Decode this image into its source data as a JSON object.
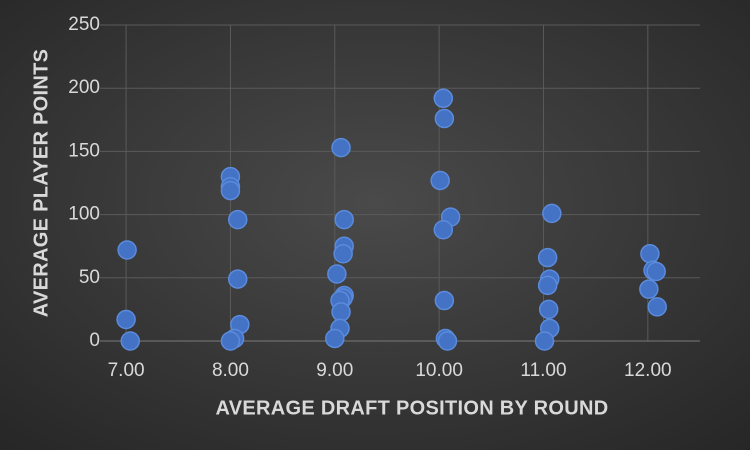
{
  "chart_data": {
    "type": "scatter",
    "x_label": "AVERAGE DRAFT POSITION BY ROUND",
    "y_label": "AVERAGE PLAYER POINTS",
    "color": "#4472c4",
    "grid": true,
    "x": [
      7.01,
      7.0,
      7.04,
      8.0,
      8.0,
      8.0,
      8.07,
      8.07,
      8.09,
      8.04,
      8.0,
      9.06,
      9.09,
      9.09,
      9.08,
      9.02,
      9.09,
      9.08,
      9.05,
      9.06,
      9.05,
      9.0,
      10.04,
      10.05,
      10.01,
      10.11,
      10.04,
      10.05,
      10.06,
      10.08,
      11.08,
      11.04,
      11.06,
      11.04,
      11.05,
      11.06,
      11.01,
      12.02,
      12.05,
      12.08,
      12.01,
      12.09
    ],
    "y": [
      72,
      17,
      0,
      130,
      122,
      119,
      96,
      49,
      13,
      2,
      0,
      153,
      96,
      75,
      69,
      53,
      36,
      34,
      32,
      23,
      10,
      2,
      192,
      176,
      127,
      98,
      88,
      32,
      2,
      0,
      101,
      66,
      49,
      44,
      25,
      10,
      0,
      69,
      56,
      55,
      41,
      27
    ],
    "xlim": [
      6.75,
      12.5
    ],
    "ylim": [
      0,
      250
    ],
    "xticks": [
      {
        "value": 7,
        "label": "7.00"
      },
      {
        "value": 8,
        "label": "8.00"
      },
      {
        "value": 9,
        "label": "9.00"
      },
      {
        "value": 10,
        "label": "10.00"
      },
      {
        "value": 11,
        "label": "11.00"
      },
      {
        "value": 12,
        "label": "12.00"
      }
    ],
    "yticks": [
      0,
      50,
      100,
      150,
      200,
      250
    ]
  }
}
